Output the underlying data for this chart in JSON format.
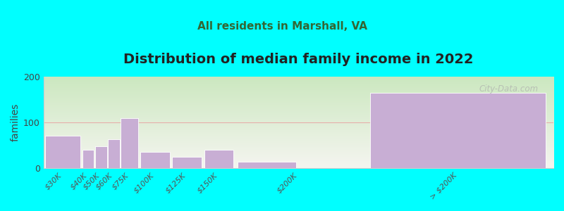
{
  "title": "Distribution of median family income in 2022",
  "subtitle": "All residents in Marshall, VA",
  "ylabel": "families",
  "categories": [
    "$30K",
    "$40K",
    "$50K",
    "$60K",
    "$75K",
    "$100K",
    "$125K",
    "$150K",
    "$200K",
    "> $200K"
  ],
  "values": [
    70,
    40,
    47,
    63,
    110,
    35,
    25,
    40,
    13,
    165
  ],
  "bar_lefts": [
    0,
    30,
    40,
    50,
    60,
    75,
    100,
    125,
    150,
    250
  ],
  "bar_widths": [
    30,
    10,
    10,
    10,
    15,
    25,
    25,
    25,
    50,
    150
  ],
  "bar_color": "#c8aed4",
  "background_color": "#00ffff",
  "plot_bg_top": "#cce8c0",
  "plot_bg_bottom": "#f5f5f0",
  "hline_color": "#e8a0a0",
  "watermark": "City-Data.com",
  "ylim": [
    0,
    200
  ],
  "xlim": [
    0,
    400
  ],
  "yticks": [
    0,
    100,
    200
  ],
  "xtick_positions": [
    15,
    35,
    45,
    55,
    67.5,
    87.5,
    112.5,
    137.5,
    200,
    325
  ],
  "title_fontsize": 14,
  "subtitle_fontsize": 11,
  "ylabel_fontsize": 10
}
